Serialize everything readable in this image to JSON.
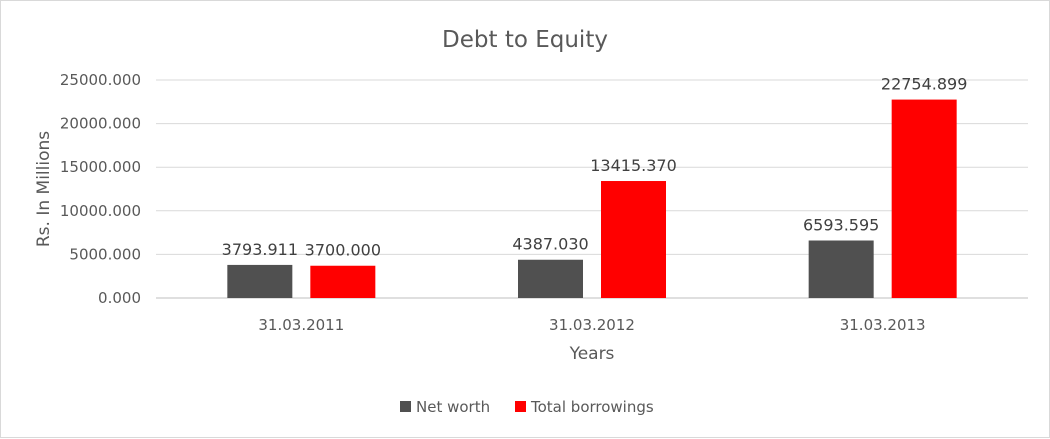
{
  "chart_data": {
    "type": "bar",
    "title": "Debt to Equity",
    "xlabel": "Years",
    "ylabel": "Rs. In Millions",
    "categories": [
      "31.03.2011",
      "31.03.2012",
      "31.03.2013"
    ],
    "series": [
      {
        "name": "Net worth",
        "color": "#505050",
        "values": [
          3793.911,
          4387.03,
          6593.595
        ],
        "labels": [
          "3793.911",
          "4387.030",
          "6593.595"
        ]
      },
      {
        "name": "Total borrowings",
        "color": "#ff0000",
        "values": [
          3700.0,
          13415.37,
          22754.899
        ],
        "labels": [
          "3700.000",
          "13415.370",
          "22754.899"
        ]
      }
    ],
    "ylim": [
      0,
      25000
    ],
    "yticks": [
      0,
      5000,
      10000,
      15000,
      20000,
      25000
    ],
    "ytick_labels": [
      "0.000",
      "5000.000",
      "10000.000",
      "15000.000",
      "20000.000",
      "25000.000"
    ],
    "grid": true,
    "legend_position": "bottom"
  }
}
